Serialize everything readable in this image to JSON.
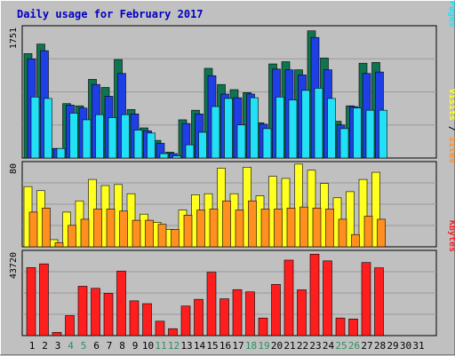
{
  "title": "Daily usage for February 2017",
  "colors": {
    "hits": "#0f7450",
    "files": "#1f3fe6",
    "pages": "#22e0f6",
    "visits": "#ffff20",
    "sites": "#ff9020",
    "kbytes": "#ff1e1e",
    "weekday": "#000000",
    "weekend": "#2f8f5f"
  },
  "chart_data": [
    {
      "type": "bar",
      "panel": "hits-files-pages",
      "ylabel_parts": [
        "Pages",
        "Files",
        "Hits"
      ],
      "ymax_label": "1751",
      "ylim": [
        0,
        1751
      ],
      "categories": [
        "1",
        "2",
        "3",
        "4",
        "5",
        "6",
        "7",
        "8",
        "9",
        "10",
        "11",
        "12",
        "13",
        "14",
        "15",
        "16",
        "17",
        "18",
        "19",
        "20",
        "21",
        "22",
        "23",
        "24",
        "25",
        "26",
        "27",
        "28",
        "29",
        "30",
        "31"
      ],
      "series": [
        {
          "name": "Hits",
          "values": [
            1420,
            1550,
            130,
            740,
            710,
            1070,
            960,
            1340,
            660,
            410,
            240,
            80,
            520,
            650,
            1220,
            1000,
            930,
            890,
            480,
            1280,
            1310,
            1200,
            1730,
            1360,
            500,
            710,
            1290,
            1300,
            null,
            null,
            null
          ]
        },
        {
          "name": "Files",
          "values": [
            1350,
            1460,
            130,
            720,
            680,
            1000,
            840,
            1150,
            600,
            370,
            200,
            60,
            470,
            600,
            1120,
            870,
            820,
            870,
            460,
            1210,
            1200,
            1130,
            1640,
            1200,
            450,
            700,
            1150,
            1170,
            null,
            null,
            null
          ]
        },
        {
          "name": "Pages",
          "values": [
            830,
            810,
            130,
            610,
            520,
            590,
            550,
            590,
            380,
            340,
            60,
            30,
            180,
            350,
            700,
            810,
            450,
            820,
            400,
            830,
            790,
            920,
            950,
            810,
            400,
            680,
            650,
            650,
            null,
            null,
            null
          ]
        }
      ]
    },
    {
      "type": "bar",
      "panel": "visits-sites",
      "ylabel_parts": [
        "Sites",
        "Visits"
      ],
      "ymax_label": "80",
      "ylim": [
        0,
        80
      ],
      "categories": [
        "1",
        "2",
        "3",
        "4",
        "5",
        "6",
        "7",
        "8",
        "9",
        "10",
        "11",
        "12",
        "13",
        "14",
        "15",
        "16",
        "17",
        "18",
        "19",
        "20",
        "21",
        "22",
        "23",
        "24",
        "25",
        "26",
        "27",
        "28",
        "29",
        "30",
        "31"
      ],
      "series": [
        {
          "name": "Visits",
          "values": [
            59,
            55,
            7,
            34,
            45,
            66,
            60,
            61,
            52,
            32,
            24,
            17,
            36,
            51,
            52,
            77,
            52,
            78,
            50,
            69,
            67,
            81,
            75,
            62,
            48,
            54,
            66,
            73,
            null,
            null,
            null
          ]
        },
        {
          "name": "Sites",
          "values": [
            34,
            38,
            4,
            21,
            27,
            37,
            37,
            35,
            26,
            26,
            22,
            17,
            31,
            36,
            37,
            45,
            36,
            45,
            37,
            37,
            38,
            39,
            38,
            37,
            27,
            12,
            30,
            27,
            null,
            null,
            null
          ]
        }
      ]
    },
    {
      "type": "bar",
      "panel": "kbytes",
      "ylabel_parts": [
        "KBytes"
      ],
      "ymax_label": "43720",
      "ylim": [
        0,
        43720
      ],
      "categories": [
        "1",
        "2",
        "3",
        "4",
        "5",
        "6",
        "7",
        "8",
        "9",
        "10",
        "11",
        "12",
        "13",
        "14",
        "15",
        "16",
        "17",
        "18",
        "19",
        "20",
        "21",
        "22",
        "23",
        "24",
        "25",
        "26",
        "27",
        "28",
        "29",
        "30",
        "31"
      ],
      "series": [
        {
          "name": "KBytes",
          "values": [
            36400,
            38400,
            1700,
            10700,
            26400,
            25300,
            22600,
            34500,
            18600,
            17100,
            7700,
            3700,
            15800,
            19400,
            33900,
            19700,
            24600,
            23400,
            9400,
            27400,
            40400,
            24500,
            43600,
            40000,
            9400,
            8900,
            39100,
            36300,
            null,
            null,
            null
          ]
        }
      ]
    }
  ],
  "x_axis": {
    "labels": [
      "1",
      "2",
      "3",
      "4",
      "5",
      "6",
      "7",
      "8",
      "9",
      "10",
      "11",
      "12",
      "13",
      "14",
      "15",
      "16",
      "17",
      "18",
      "19",
      "20",
      "21",
      "22",
      "23",
      "24",
      "25",
      "26",
      "27",
      "28",
      "29",
      "30",
      "31"
    ],
    "weekend": [
      false,
      false,
      false,
      true,
      true,
      false,
      false,
      false,
      false,
      false,
      true,
      true,
      false,
      false,
      false,
      false,
      false,
      true,
      true,
      false,
      false,
      false,
      false,
      false,
      true,
      true,
      false,
      false,
      false,
      false,
      false
    ]
  }
}
